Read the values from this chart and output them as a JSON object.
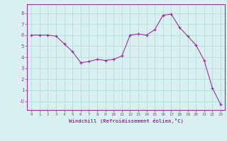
{
  "x": [
    0,
    1,
    2,
    3,
    4,
    5,
    6,
    7,
    8,
    9,
    10,
    11,
    12,
    13,
    14,
    15,
    16,
    17,
    18,
    19,
    20,
    21,
    22,
    23
  ],
  "y": [
    6.0,
    6.0,
    6.0,
    5.9,
    5.2,
    4.5,
    3.5,
    3.6,
    3.8,
    3.7,
    3.8,
    4.1,
    6.0,
    6.1,
    6.0,
    6.5,
    7.8,
    7.9,
    6.7,
    5.9,
    5.1,
    3.7,
    1.2,
    -0.3
  ],
  "line_color": "#993399",
  "marker": "+",
  "background_color": "#d8f0f0",
  "grid_color": "#b0d8d8",
  "xlabel": "Windchill (Refroidissement éolien,°C)",
  "yticks": [
    0,
    1,
    2,
    3,
    4,
    5,
    6,
    7,
    8
  ],
  "ytick_labels": [
    "-0",
    "1",
    "2",
    "3",
    "4",
    "5",
    "6",
    "7",
    "8"
  ],
  "xlim": [
    -0.5,
    23.5
  ],
  "ylim": [
    -0.8,
    8.8
  ],
  "axes_color": "#993399"
}
